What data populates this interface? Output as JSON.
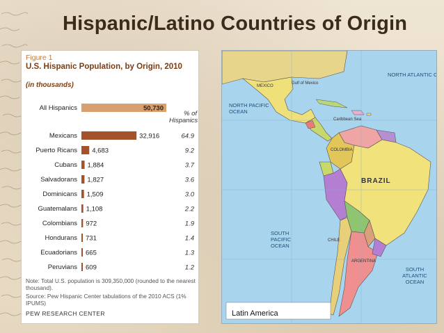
{
  "slide": {
    "title": "Hispanic/Latino Countries of Origin"
  },
  "figure": {
    "label": "Figure 1",
    "title": "U.S. Hispanic Population, by Origin, 2010",
    "subtitle": "(in thousands)",
    "pct_header": "% of Hispanics",
    "note": "Note: Total U.S. population is 309,350,000 (rounded to the nearest thousand).",
    "source": "Source: Pew Hispanic Center tabulations of the 2010 ACS (1% IPUMS)",
    "brand": "PEW RESEARCH CENTER"
  },
  "chart_data": {
    "type": "bar",
    "title": "U.S. Hispanic Population, by Origin, 2010",
    "subtitle": "(in thousands)",
    "categories": [
      "All Hispanics",
      "Mexicans",
      "Puerto Ricans",
      "Cubans",
      "Salvadorans",
      "Dominicans",
      "Guatemalans",
      "Colombians",
      "Hondurans",
      "Ecuadorians",
      "Peruvians"
    ],
    "values": [
      50730,
      32916,
      4683,
      1884,
      1827,
      1509,
      1108,
      972,
      731,
      665,
      609
    ],
    "value_labels": [
      "50,730",
      "32,916",
      "4,683",
      "1,884",
      "1,827",
      "1,509",
      "1,108",
      "972",
      "731",
      "665",
      "609"
    ],
    "pct_labels": [
      "",
      "64.9",
      "9.2",
      "3.7",
      "3.6",
      "3.0",
      "2.2",
      "1.9",
      "1.4",
      "1.3",
      "1.2"
    ],
    "colors": {
      "total": "#d9a06f",
      "origin": "#a3522a"
    }
  },
  "map": {
    "title": "Latin America",
    "oceans": [
      "NORTH ATLANTIC OCEAN",
      "NORTH PACIFIC OCEAN",
      "SOUTH PACIFIC OCEAN",
      "SOUTH ATLANTIC OCEAN"
    ],
    "brazil_label": "BRAZIL",
    "region_labels": [
      "MEXICO",
      "COLOMBIA",
      "CHILE",
      "ARGENTINA",
      "Gulf of Mexico",
      "Caribbean Sea"
    ]
  }
}
